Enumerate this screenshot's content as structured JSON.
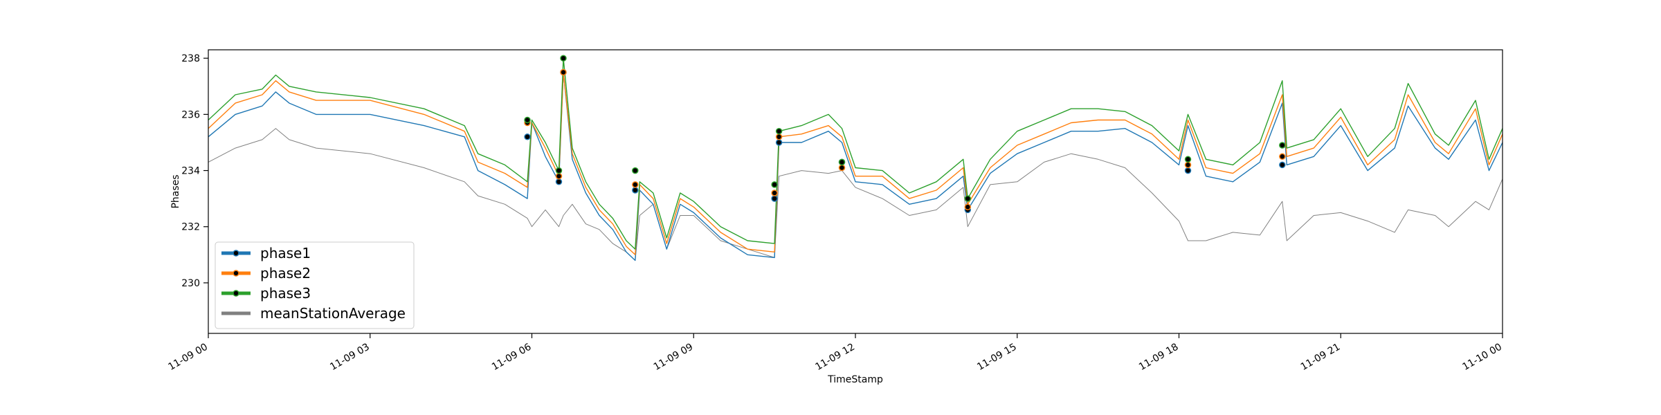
{
  "chart_data": {
    "type": "line",
    "title": "",
    "xlabel": "TimeStamp",
    "ylabel": "Phases",
    "x_range": [
      "2020-11-09 00:00",
      "2020-11-10 00:00"
    ],
    "ylim": [
      228.2,
      238.3
    ],
    "x_ticks": [
      {
        "t": "2020-11-09 00:00",
        "label": "11-09 00"
      },
      {
        "t": "2020-11-09 03:00",
        "label": "11-09 03"
      },
      {
        "t": "2020-11-09 06:00",
        "label": "11-09 06"
      },
      {
        "t": "2020-11-09 09:00",
        "label": "11-09 09"
      },
      {
        "t": "2020-11-09 12:00",
        "label": "11-09 12"
      },
      {
        "t": "2020-11-09 15:00",
        "label": "11-09 15"
      },
      {
        "t": "2020-11-09 18:00",
        "label": "11-09 18"
      },
      {
        "t": "2020-11-09 21:00",
        "label": "11-09 21"
      },
      {
        "t": "2020-11-10 00:00",
        "label": "11-10 00"
      }
    ],
    "y_ticks": [
      230,
      232,
      234,
      236,
      238
    ],
    "legend_position": "lower-left",
    "grid": false,
    "x": [
      "2020-11-09 00:00",
      "2020-11-09 00:30",
      "2020-11-09 01:00",
      "2020-11-09 01:15",
      "2020-11-09 01:30",
      "2020-11-09 02:00",
      "2020-11-09 03:00",
      "2020-11-09 04:00",
      "2020-11-09 04:45",
      "2020-11-09 05:00",
      "2020-11-09 05:30",
      "2020-11-09 05:55",
      "2020-11-09 06:00",
      "2020-11-09 06:15",
      "2020-11-09 06:30",
      "2020-11-09 06:35",
      "2020-11-09 06:45",
      "2020-11-09 07:00",
      "2020-11-09 07:15",
      "2020-11-09 07:30",
      "2020-11-09 07:45",
      "2020-11-09 07:55",
      "2020-11-09 08:00",
      "2020-11-09 08:15",
      "2020-11-09 08:30",
      "2020-11-09 08:45",
      "2020-11-09 09:00",
      "2020-11-09 09:30",
      "2020-11-09 10:00",
      "2020-11-09 10:30",
      "2020-11-09 10:35",
      "2020-11-09 11:00",
      "2020-11-09 11:30",
      "2020-11-09 11:45",
      "2020-11-09 12:00",
      "2020-11-09 12:30",
      "2020-11-09 13:00",
      "2020-11-09 13:30",
      "2020-11-09 14:00",
      "2020-11-09 14:05",
      "2020-11-09 14:30",
      "2020-11-09 15:00",
      "2020-11-09 15:30",
      "2020-11-09 16:00",
      "2020-11-09 16:30",
      "2020-11-09 17:00",
      "2020-11-09 17:30",
      "2020-11-09 18:00",
      "2020-11-09 18:10",
      "2020-11-09 18:30",
      "2020-11-09 19:00",
      "2020-11-09 19:30",
      "2020-11-09 19:55",
      "2020-11-09 20:00",
      "2020-11-09 20:30",
      "2020-11-09 21:00",
      "2020-11-09 21:30",
      "2020-11-09 22:00",
      "2020-11-09 22:15",
      "2020-11-09 22:45",
      "2020-11-09 23:00",
      "2020-11-09 23:30",
      "2020-11-09 23:45",
      "2020-11-10 00:00"
    ],
    "series": [
      {
        "name": "phase1",
        "color": "#1f77b4",
        "values": [
          235.2,
          236.0,
          236.3,
          236.8,
          236.4,
          236.0,
          236.0,
          235.6,
          235.2,
          234.0,
          233.5,
          233.0,
          235.7,
          234.5,
          233.6,
          237.5,
          234.4,
          233.2,
          232.4,
          231.9,
          231.1,
          230.8,
          233.3,
          232.8,
          231.2,
          232.8,
          232.5,
          231.6,
          231.0,
          230.9,
          235.0,
          235.0,
          235.4,
          235.0,
          233.6,
          233.5,
          232.8,
          233.0,
          233.8,
          232.6,
          233.9,
          234.6,
          235.0,
          235.4,
          235.4,
          235.5,
          235.0,
          234.2,
          235.6,
          233.8,
          233.6,
          234.3,
          236.4,
          234.2,
          234.5,
          235.6,
          234.0,
          234.8,
          236.3,
          234.8,
          234.4,
          235.8,
          234.0,
          235.0
        ]
      },
      {
        "name": "phase2",
        "color": "#ff7f0e",
        "values": [
          235.5,
          236.4,
          236.7,
          237.2,
          236.8,
          236.5,
          236.5,
          236.0,
          235.4,
          234.3,
          233.9,
          233.4,
          235.7,
          234.8,
          233.8,
          237.5,
          234.6,
          233.4,
          232.6,
          232.1,
          231.3,
          231.0,
          233.5,
          233.0,
          231.4,
          233.0,
          232.7,
          231.8,
          231.2,
          231.1,
          235.2,
          235.3,
          235.6,
          235.2,
          233.8,
          233.8,
          233.0,
          233.3,
          234.1,
          232.8,
          234.1,
          234.9,
          235.3,
          235.7,
          235.8,
          235.8,
          235.3,
          234.4,
          235.8,
          234.1,
          233.9,
          234.6,
          236.7,
          234.5,
          234.8,
          235.9,
          234.2,
          235.1,
          236.7,
          235.0,
          234.6,
          236.2,
          234.2,
          235.3
        ]
      },
      {
        "name": "phase3",
        "color": "#2ca02c",
        "values": [
          235.8,
          236.7,
          236.9,
          237.4,
          237.0,
          236.8,
          236.6,
          236.2,
          235.6,
          234.6,
          234.2,
          233.6,
          235.8,
          235.0,
          234.0,
          238.0,
          234.8,
          233.6,
          232.8,
          232.3,
          231.5,
          231.2,
          233.6,
          233.2,
          231.6,
          233.2,
          232.9,
          232.0,
          231.5,
          231.4,
          235.4,
          235.6,
          236.0,
          235.5,
          234.1,
          234.0,
          233.2,
          233.6,
          234.4,
          233.0,
          234.4,
          235.4,
          235.8,
          236.2,
          236.2,
          236.1,
          235.6,
          234.7,
          236.0,
          234.4,
          234.2,
          235.0,
          237.2,
          234.8,
          235.1,
          236.2,
          234.5,
          235.5,
          237.1,
          235.3,
          234.9,
          236.5,
          234.4,
          235.5
        ]
      },
      {
        "name": "meanStationAverage",
        "color": "#808080",
        "values": [
          234.3,
          234.8,
          235.1,
          235.5,
          235.1,
          234.8,
          234.6,
          234.1,
          233.6,
          233.1,
          232.8,
          232.3,
          232.0,
          232.6,
          232.0,
          232.4,
          232.8,
          232.1,
          231.9,
          231.4,
          231.1,
          230.8,
          232.4,
          232.8,
          231.2,
          232.4,
          232.4,
          231.5,
          231.2,
          230.9,
          233.8,
          234.0,
          233.9,
          234.0,
          233.4,
          233.0,
          232.4,
          232.6,
          233.4,
          232.0,
          233.5,
          233.6,
          234.3,
          234.6,
          234.4,
          234.1,
          233.2,
          232.2,
          231.5,
          231.5,
          231.8,
          231.7,
          232.9,
          231.5,
          232.4,
          232.5,
          232.2,
          231.8,
          232.6,
          232.4,
          232.0,
          232.9,
          232.6,
          233.7
        ]
      }
    ],
    "markers": {
      "phase1": [
        [
          "2020-11-09 05:55",
          235.2
        ],
        [
          "2020-11-09 06:30",
          233.6
        ],
        [
          "2020-11-09 06:35",
          237.5
        ],
        [
          "2020-11-09 07:55",
          233.3
        ],
        [
          "2020-11-09 10:30",
          233.0
        ],
        [
          "2020-11-09 10:35",
          235.0
        ],
        [
          "2020-11-09 11:45",
          234.3
        ],
        [
          "2020-11-09 14:05",
          232.6
        ],
        [
          "2020-11-09 18:10",
          234.0
        ],
        [
          "2020-11-09 19:55",
          234.2
        ]
      ],
      "phase2": [
        [
          "2020-11-09 05:55",
          235.7
        ],
        [
          "2020-11-09 06:30",
          233.8
        ],
        [
          "2020-11-09 06:35",
          237.5
        ],
        [
          "2020-11-09 07:55",
          233.5
        ],
        [
          "2020-11-09 10:30",
          233.2
        ],
        [
          "2020-11-09 10:35",
          235.2
        ],
        [
          "2020-11-09 11:45",
          234.1
        ],
        [
          "2020-11-09 14:05",
          232.7
        ],
        [
          "2020-11-09 18:10",
          234.2
        ],
        [
          "2020-11-09 19:55",
          234.5
        ]
      ],
      "phase3": [
        [
          "2020-11-09 05:55",
          235.8
        ],
        [
          "2020-11-09 06:30",
          234.0
        ],
        [
          "2020-11-09 06:35",
          238.0
        ],
        [
          "2020-11-09 07:55",
          234.0
        ],
        [
          "2020-11-09 10:30",
          233.5
        ],
        [
          "2020-11-09 10:35",
          235.4
        ],
        [
          "2020-11-09 11:45",
          234.3
        ],
        [
          "2020-11-09 14:05",
          233.0
        ],
        [
          "2020-11-09 18:10",
          234.4
        ],
        [
          "2020-11-09 19:55",
          234.9
        ]
      ]
    }
  }
}
